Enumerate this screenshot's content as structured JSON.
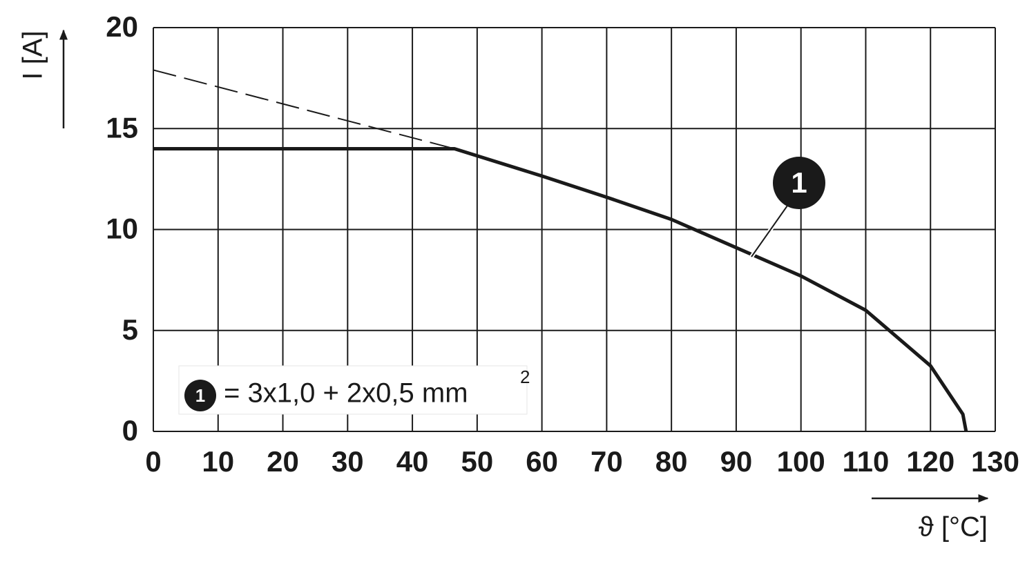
{
  "chart_data": {
    "type": "line",
    "y_label": "I [A]",
    "x_label": "ϑ [°C]",
    "xlim": [
      0,
      130
    ],
    "ylim": [
      0,
      20
    ],
    "xticks": [
      0,
      10,
      20,
      30,
      40,
      50,
      60,
      70,
      80,
      90,
      100,
      110,
      120,
      130
    ],
    "yticks": [
      0,
      5,
      10,
      15,
      20
    ],
    "grid": true,
    "series": [
      {
        "color": "#1a1a1a",
        "dashed": false,
        "x": [
          0,
          46.5,
          60,
          70,
          80,
          90,
          100,
          110,
          120,
          125,
          125.5
        ],
        "values": [
          14,
          14,
          12.65,
          11.6,
          10.5,
          9.1,
          7.7,
          6.0,
          3.25,
          0.85,
          0
        ]
      },
      {
        "color": "#1a1a1a",
        "dashed": true,
        "x": [
          0,
          46.5
        ],
        "values": [
          17.9,
          14
        ]
      }
    ],
    "annotation": "1",
    "legend": {
      "marker": "1",
      "text": "= 3x1,0 + 2x0,5 mm",
      "superscript": "2"
    }
  }
}
